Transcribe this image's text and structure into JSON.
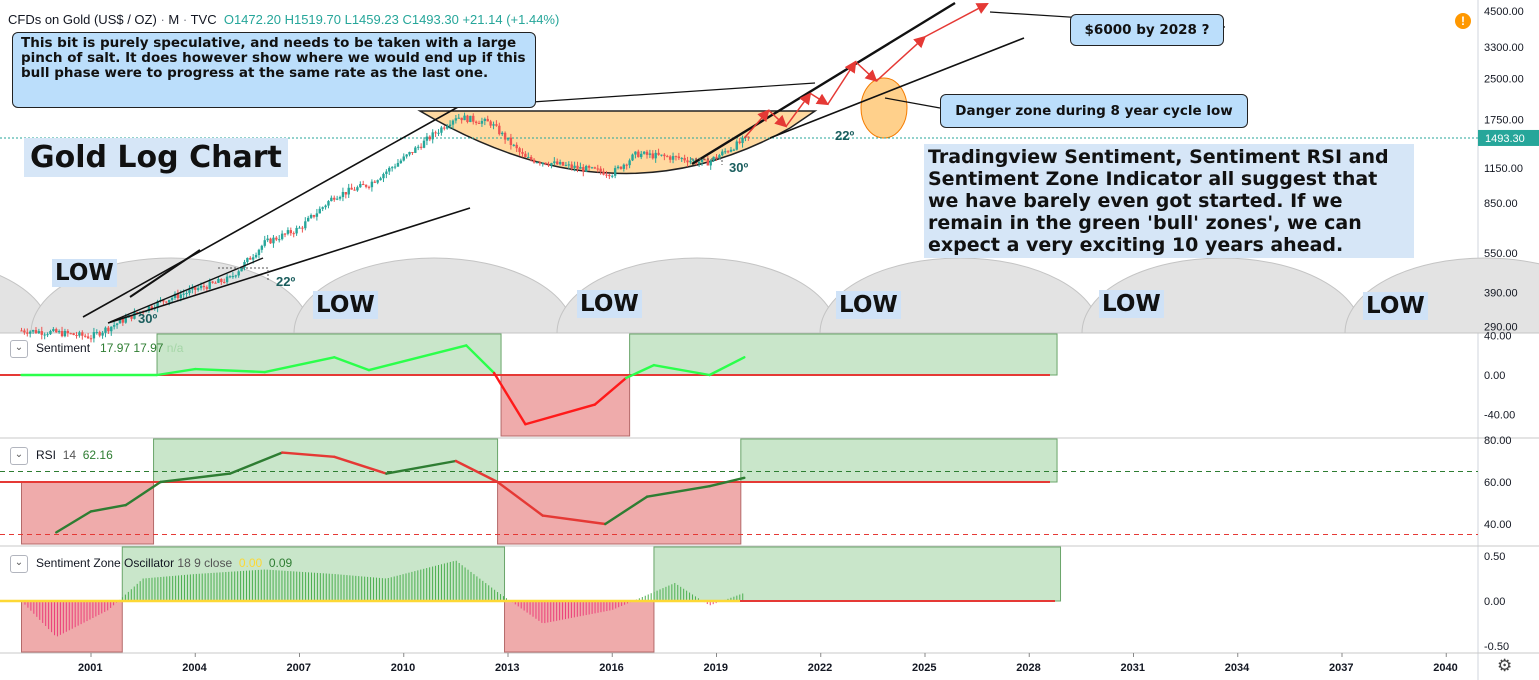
{
  "header": {
    "symbol": "CFDs on Gold (US$ / OZ)",
    "sep1": "·",
    "interval": "M",
    "sep2": "·",
    "source": "TVC",
    "open": "O1472.20",
    "high": "H1519.70",
    "low": "L1459.23",
    "close": "C1493.30",
    "change": "+21.14 (+1.44%)"
  },
  "title": "Gold Log Chart",
  "notes": {
    "speculative": "This bit is purely speculative, and needs to be taken with a large pinch of salt. It does however show where we would end up if this bull phase were to progress at the same rate as the last one.",
    "target": "$6000 by 2028 ?",
    "danger": "Danger zone during 8 year cycle low",
    "sentiment": "Tradingview Sentiment, Sentiment RSI and Sentiment Zone Indicator all suggest that we have barely even got started. If we remain in the green 'bull' zones', we can expect a very exciting 10 years ahead."
  },
  "cycle_labels": [
    "LOW",
    "LOW",
    "LOW",
    "LOW",
    "LOW",
    "LOW"
  ],
  "angles": [
    "30º",
    "22º",
    "22º",
    "30º"
  ],
  "price_badge": "1493.30",
  "alert_icon": "alert-icon",
  "settings_icon": "gear-icon",
  "colors": {
    "up": "#26a69a",
    "down": "#ef5350",
    "green_zone": "#a5d6a7",
    "red_zone": "#e57373",
    "orange": "#ffcc80",
    "line_green": "#00e676",
    "line_red": "#ff1744"
  },
  "chart_data": [
    {
      "type": "candlestick",
      "title": "Gold Log Chart",
      "scale": "log",
      "x_ticks": [
        "2001",
        "2004",
        "2007",
        "2010",
        "2013",
        "2016",
        "2019",
        "2022",
        "2025",
        "2028",
        "2031",
        "2034",
        "2037",
        "2040"
      ],
      "y_ticks": [
        "4500.00",
        "3300.00",
        "2500.00",
        "1750.00",
        "1150.00",
        "850.00",
        "550.00",
        "390.00",
        "290.00"
      ],
      "last_price": 1493.3,
      "approx_price_path": [
        {
          "year": 1999.0,
          "price": 280
        },
        {
          "year": 2000.0,
          "price": 275
        },
        {
          "year": 2001.0,
          "price": 265
        },
        {
          "year": 2002.0,
          "price": 310
        },
        {
          "year": 2003.0,
          "price": 360
        },
        {
          "year": 2004.0,
          "price": 400
        },
        {
          "year": 2005.0,
          "price": 440
        },
        {
          "year": 2006.0,
          "price": 600
        },
        {
          "year": 2007.0,
          "price": 680
        },
        {
          "year": 2008.0,
          "price": 900
        },
        {
          "year": 2009.0,
          "price": 1000
        },
        {
          "year": 2010.0,
          "price": 1250
        },
        {
          "year": 2011.5,
          "price": 1800
        },
        {
          "year": 2012.5,
          "price": 1700
        },
        {
          "year": 2013.5,
          "price": 1250
        },
        {
          "year": 2015.0,
          "price": 1150
        },
        {
          "year": 2016.0,
          "price": 1100
        },
        {
          "year": 2016.7,
          "price": 1300
        },
        {
          "year": 2018.0,
          "price": 1250
        },
        {
          "year": 2018.7,
          "price": 1200
        },
        {
          "year": 2019.9,
          "price": 1493
        }
      ],
      "projection": [
        {
          "year": 2019.8,
          "price": 1493
        },
        {
          "year": 2020.5,
          "price": 1900
        },
        {
          "year": 2021.0,
          "price": 1650
        },
        {
          "year": 2021.7,
          "price": 2200
        },
        {
          "year": 2022.2,
          "price": 2000
        },
        {
          "year": 2023.0,
          "price": 2900
        },
        {
          "year": 2023.6,
          "price": 2450
        },
        {
          "year": 2025.0,
          "price": 3600
        },
        {
          "year": 2026.8,
          "price": 4800
        }
      ]
    },
    {
      "type": "line",
      "name": "Sentiment",
      "legend_values": [
        "17.97",
        "17.97",
        "n/a"
      ],
      "y_ticks": [
        "40.00",
        "0.00",
        "-40.00"
      ],
      "zones": [
        {
          "from": 2002.9,
          "to": 2012.8,
          "color": "green"
        },
        {
          "from": 2012.8,
          "to": 2016.5,
          "color": "red"
        },
        {
          "from": 2016.5,
          "to": 2028.8,
          "color": "green"
        }
      ],
      "approx_series": [
        {
          "year": 1999.0,
          "value": 0
        },
        {
          "year": 2002.9,
          "value": 0
        },
        {
          "year": 2004.0,
          "value": 6
        },
        {
          "year": 2006.0,
          "value": 3
        },
        {
          "year": 2008.0,
          "value": 18
        },
        {
          "year": 2009.0,
          "value": 5
        },
        {
          "year": 2011.8,
          "value": 30
        },
        {
          "year": 2012.6,
          "value": 2
        },
        {
          "year": 2013.5,
          "value": -50
        },
        {
          "year": 2015.5,
          "value": -30
        },
        {
          "year": 2016.4,
          "value": -3
        },
        {
          "year": 2017.2,
          "value": 10
        },
        {
          "year": 2018.8,
          "value": 0
        },
        {
          "year": 2019.8,
          "value": 18
        }
      ]
    },
    {
      "type": "line",
      "name": "RSI",
      "legend_values": [
        "14",
        "62.16"
      ],
      "y_ticks": [
        "80.00",
        "60.00",
        "40.00"
      ],
      "levels": [
        65,
        35
      ],
      "zones": [
        {
          "from": 1999.0,
          "to": 2002.8,
          "color": "red"
        },
        {
          "from": 2002.8,
          "to": 2012.7,
          "color": "green"
        },
        {
          "from": 2012.7,
          "to": 2019.7,
          "color": "red"
        },
        {
          "from": 2019.7,
          "to": 2028.8,
          "color": "green"
        }
      ],
      "approx_series": [
        {
          "year": 2000.0,
          "value": 36
        },
        {
          "year": 2001.0,
          "value": 46
        },
        {
          "year": 2002.0,
          "value": 49
        },
        {
          "year": 2003.0,
          "value": 60
        },
        {
          "year": 2005.0,
          "value": 64
        },
        {
          "year": 2006.5,
          "value": 74
        },
        {
          "year": 2008.0,
          "value": 72
        },
        {
          "year": 2009.5,
          "value": 64
        },
        {
          "year": 2011.5,
          "value": 70
        },
        {
          "year": 2012.7,
          "value": 60
        },
        {
          "year": 2014.0,
          "value": 44
        },
        {
          "year": 2015.8,
          "value": 40
        },
        {
          "year": 2017.0,
          "value": 53
        },
        {
          "year": 2018.8,
          "value": 58
        },
        {
          "year": 2019.8,
          "value": 62
        }
      ]
    },
    {
      "type": "bar",
      "name": "Sentiment Zone Oscillator",
      "legend_values": [
        "18",
        "9",
        "close",
        "0.00",
        "0.09"
      ],
      "y_ticks": [
        "0.50",
        "0.00",
        "-0.50"
      ],
      "zones": [
        {
          "from": 1999.0,
          "to": 2001.9,
          "color": "red"
        },
        {
          "from": 2001.9,
          "to": 2012.9,
          "color": "green"
        },
        {
          "from": 2012.9,
          "to": 2017.2,
          "color": "red"
        },
        {
          "from": 2017.2,
          "to": 2028.9,
          "color": "green"
        }
      ],
      "approx_series": [
        {
          "year": 2000.0,
          "value": -0.4
        },
        {
          "year": 2001.5,
          "value": -0.1
        },
        {
          "year": 2002.5,
          "value": 0.25
        },
        {
          "year": 2004.0,
          "value": 0.3
        },
        {
          "year": 2006.0,
          "value": 0.35
        },
        {
          "year": 2008.0,
          "value": 0.3
        },
        {
          "year": 2009.5,
          "value": 0.25
        },
        {
          "year": 2011.5,
          "value": 0.45
        },
        {
          "year": 2012.7,
          "value": 0.1
        },
        {
          "year": 2014.0,
          "value": -0.25
        },
        {
          "year": 2016.0,
          "value": -0.1
        },
        {
          "year": 2017.8,
          "value": 0.2
        },
        {
          "year": 2018.8,
          "value": -0.05
        },
        {
          "year": 2019.8,
          "value": 0.09
        }
      ]
    }
  ]
}
